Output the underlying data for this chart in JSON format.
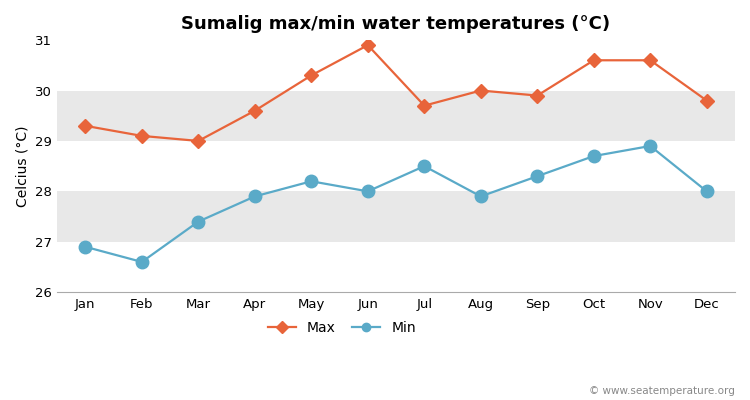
{
  "title": "Sumalig max/min water temperatures (°C)",
  "ylabel": "Celcius (°C)",
  "months": [
    "Jan",
    "Feb",
    "Mar",
    "Apr",
    "May",
    "Jun",
    "Jul",
    "Aug",
    "Sep",
    "Oct",
    "Nov",
    "Dec"
  ],
  "max_temps": [
    29.3,
    29.1,
    29.0,
    29.6,
    30.3,
    30.9,
    29.7,
    30.0,
    29.9,
    30.6,
    30.6,
    29.8
  ],
  "min_temps": [
    26.9,
    26.6,
    27.4,
    27.9,
    28.2,
    28.0,
    28.5,
    27.9,
    28.3,
    28.7,
    28.9,
    28.0
  ],
  "max_color": "#e8643a",
  "min_color": "#5aaac8",
  "fig_bg_color": "#ffffff",
  "band_colors": [
    "#ffffff",
    "#e8e8e8"
  ],
  "ylim": [
    26.0,
    31.0
  ],
  "yticks": [
    26,
    27,
    28,
    29,
    30,
    31
  ],
  "copyright_text": "© www.seatemperature.org",
  "title_fontsize": 13,
  "label_fontsize": 10,
  "tick_fontsize": 9.5,
  "legend_fontsize": 10,
  "line_width": 1.6,
  "max_marker_size": 7,
  "min_marker_size": 9
}
